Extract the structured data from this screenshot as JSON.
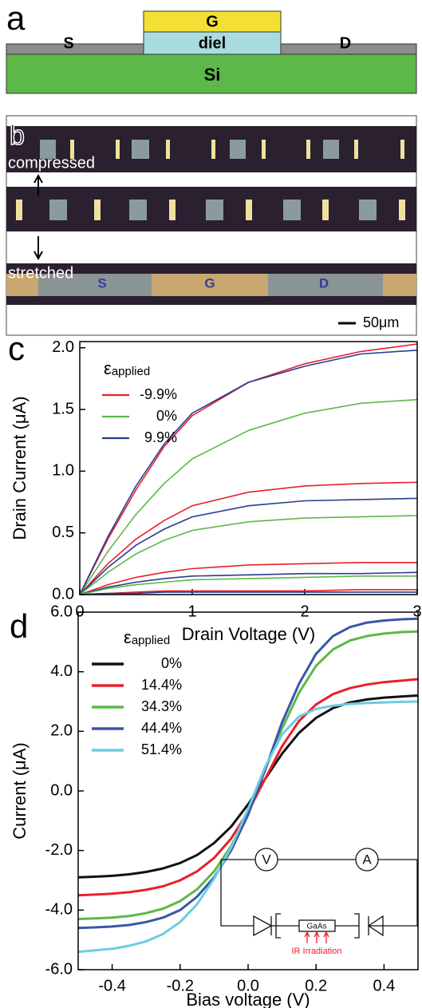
{
  "panel_a": {
    "label": "a",
    "gate": "G",
    "dielectric": "diel",
    "source": "S",
    "drain": "D",
    "substrate": "Si"
  },
  "panel_b": {
    "label": "b",
    "states": [
      "compressed",
      "stretched"
    ],
    "electrodes": [
      "S",
      "G",
      "D"
    ],
    "scale_bar": "50μm"
  },
  "chart_data": [
    {
      "type": "line",
      "panel_label": "c",
      "x_label": "Drain Voltage (V)",
      "y_label": "Drain Current (μA)",
      "legend_title": {
        "symbol": "ε",
        "subscript": "applied"
      },
      "xlim": [
        0,
        3
      ],
      "xticks": [
        0,
        1,
        2,
        3
      ],
      "ylim": [
        0,
        2.05
      ],
      "yticks": [
        {
          "value": 0,
          "label": "0.0"
        },
        0.5,
        {
          "value": 1,
          "label": "1.0"
        },
        1.5,
        {
          "value": 2,
          "label": "2.0"
        }
      ],
      "x": [
        0,
        0.25,
        0.5,
        0.75,
        1,
        1.5,
        2,
        2.5,
        3
      ],
      "series": [
        {
          "name": "-9.9%",
          "color": "#e8202a",
          "values": [
            0,
            0.45,
            0.85,
            1.2,
            1.45,
            1.72,
            1.87,
            1.97,
            2.03
          ]
        },
        {
          "name": "0%",
          "color": "#5cb848",
          "values": [
            0,
            0.35,
            0.65,
            0.9,
            1.1,
            1.33,
            1.47,
            1.55,
            1.58
          ]
        },
        {
          "name": "9.9%",
          "color": "#283c92",
          "values": [
            0,
            0.47,
            0.88,
            1.22,
            1.47,
            1.72,
            1.85,
            1.95,
            1.98
          ]
        },
        {
          "color": "#e8202a",
          "values": [
            0,
            0.25,
            0.45,
            0.6,
            0.72,
            0.83,
            0.88,
            0.9,
            0.91
          ]
        },
        {
          "color": "#283c92",
          "values": [
            0,
            0.22,
            0.4,
            0.53,
            0.63,
            0.72,
            0.76,
            0.77,
            0.78
          ]
        },
        {
          "color": "#5cb848",
          "values": [
            0,
            0.18,
            0.33,
            0.44,
            0.52,
            0.59,
            0.62,
            0.63,
            0.64
          ]
        },
        {
          "color": "#e8202a",
          "values": [
            0,
            0.08,
            0.14,
            0.18,
            0.21,
            0.24,
            0.25,
            0.26,
            0.26
          ]
        },
        {
          "color": "#283c92",
          "values": [
            0,
            0.06,
            0.1,
            0.13,
            0.15,
            0.16,
            0.17,
            0.17,
            0.18
          ]
        },
        {
          "color": "#5cb848",
          "values": [
            0,
            0.05,
            0.08,
            0.1,
            0.12,
            0.13,
            0.14,
            0.15,
            0.15
          ]
        },
        {
          "color": "#e8202a",
          "values": [
            0,
            0.01,
            0.02,
            0.03,
            0.03,
            0.03,
            0.03,
            0.04,
            0.04
          ]
        },
        {
          "color": "#283c92",
          "values": [
            0,
            0.01,
            0.01,
            0.02,
            0.02,
            0.02,
            0.02,
            0.02,
            0.02
          ]
        }
      ]
    },
    {
      "type": "line",
      "panel_label": "d",
      "x_label": "Bias voltage (V)",
      "y_label": "Current (μA)",
      "legend_title": {
        "symbol": "ε",
        "subscript": "applied"
      },
      "xlim": [
        -0.5,
        0.5
      ],
      "xticks": [
        -0.4,
        -0.2,
        {
          "value": 0,
          "label": "0.0"
        },
        0.2,
        0.4
      ],
      "ylim": [
        -6,
        6
      ],
      "yticks": [
        {
          "value": -6,
          "label": "-6.0"
        },
        {
          "value": -4,
          "label": "-4.0"
        },
        {
          "value": -2,
          "label": "-2.0"
        },
        {
          "value": 0,
          "label": "0.0"
        },
        {
          "value": 2,
          "label": "2.0"
        },
        {
          "value": 4,
          "label": "4.0"
        },
        {
          "value": 6,
          "label": "6.0"
        }
      ],
      "x": [
        -0.5,
        -0.45,
        -0.4,
        -0.35,
        -0.3,
        -0.25,
        -0.2,
        -0.15,
        -0.1,
        -0.05,
        0,
        0.05,
        0.1,
        0.15,
        0.2,
        0.25,
        0.3,
        0.35,
        0.4,
        0.45,
        0.5
      ],
      "series": [
        {
          "name": "0%",
          "color": "#111111",
          "values": [
            -2.9,
            -2.88,
            -2.85,
            -2.8,
            -2.72,
            -2.6,
            -2.42,
            -2.15,
            -1.75,
            -1.2,
            -0.45,
            0.4,
            1.25,
            1.95,
            2.45,
            2.78,
            2.97,
            3.07,
            3.13,
            3.17,
            3.2
          ]
        },
        {
          "name": "14.4%",
          "color": "#e8202a",
          "values": [
            -3.5,
            -3.48,
            -3.45,
            -3.4,
            -3.32,
            -3.2,
            -3.0,
            -2.7,
            -2.25,
            -1.6,
            -0.7,
            0.4,
            1.5,
            2.35,
            2.9,
            3.25,
            3.45,
            3.57,
            3.65,
            3.7,
            3.75
          ]
        },
        {
          "name": "34.3%",
          "color": "#5cb848",
          "values": [
            -4.3,
            -4.28,
            -4.25,
            -4.2,
            -4.1,
            -3.95,
            -3.7,
            -3.3,
            -2.7,
            -1.85,
            -0.7,
            0.7,
            2.1,
            3.3,
            4.2,
            4.75,
            5.05,
            5.2,
            5.28,
            5.33,
            5.35
          ]
        },
        {
          "name": "44.4%",
          "color": "#3a56a8",
          "values": [
            -4.6,
            -4.58,
            -4.55,
            -4.5,
            -4.4,
            -4.25,
            -4.0,
            -3.55,
            -2.9,
            -2.0,
            -0.8,
            0.7,
            2.3,
            3.6,
            4.6,
            5.2,
            5.5,
            5.65,
            5.72,
            5.76,
            5.78
          ]
        },
        {
          "name": "51.4%",
          "color": "#6ccde0",
          "values": [
            -5.4,
            -5.35,
            -5.3,
            -5.2,
            -5.05,
            -4.8,
            -4.4,
            -3.8,
            -2.95,
            -1.9,
            -0.6,
            0.8,
            1.9,
            2.5,
            2.75,
            2.86,
            2.92,
            2.95,
            2.97,
            2.99,
            3.0
          ]
        }
      ],
      "inset": {
        "meters": [
          "V",
          "A"
        ],
        "sample": "GaAs",
        "illumination": "IR Irradiation"
      }
    }
  ]
}
